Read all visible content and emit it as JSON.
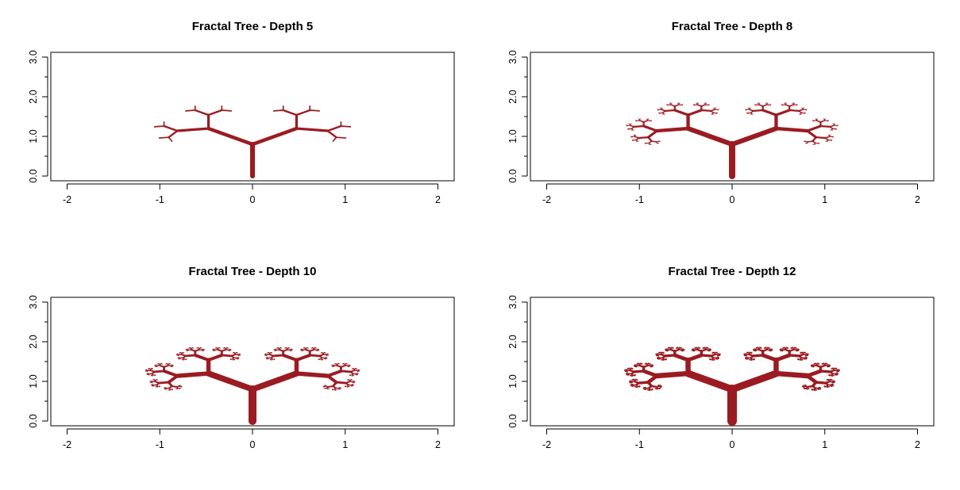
{
  "figure": {
    "background": "#ffffff",
    "branch_color": "#9b1b22"
  },
  "chart_data": [
    {
      "type": "line",
      "title": "Fractal Tree - Depth 5",
      "depth": 5,
      "xlim": [
        -2,
        2
      ],
      "ylim": [
        0,
        3
      ],
      "xticks": [
        "-2",
        "-1",
        "0",
        "1",
        "2"
      ],
      "yticks": [
        "0.0",
        "1.0",
        "2.0",
        "3.0"
      ],
      "tree": {
        "trunk": 0.8,
        "angle_deg": 50,
        "scale": 0.55,
        "base_width": 6
      },
      "grid": false
    },
    {
      "type": "line",
      "title": "Fractal Tree - Depth 8",
      "depth": 8,
      "xlim": [
        -2,
        2
      ],
      "ylim": [
        0,
        3
      ],
      "xticks": [
        "-2",
        "-1",
        "0",
        "1",
        "2"
      ],
      "yticks": [
        "0.0",
        "1.0",
        "2.0",
        "3.0"
      ],
      "tree": {
        "trunk": 0.8,
        "angle_deg": 50,
        "scale": 0.55,
        "base_width": 8
      },
      "grid": false
    },
    {
      "type": "line",
      "title": "Fractal Tree - Depth 10",
      "depth": 10,
      "xlim": [
        -2,
        2
      ],
      "ylim": [
        0,
        3
      ],
      "xticks": [
        "-2",
        "-1",
        "0",
        "1",
        "2"
      ],
      "yticks": [
        "0.0",
        "1.0",
        "2.0",
        "3.0"
      ],
      "tree": {
        "trunk": 0.8,
        "angle_deg": 50,
        "scale": 0.55,
        "base_width": 10
      },
      "grid": false
    },
    {
      "type": "line",
      "title": "Fractal Tree - Depth 12",
      "depth": 12,
      "xlim": [
        -2,
        2
      ],
      "ylim": [
        0,
        3
      ],
      "xticks": [
        "-2",
        "-1",
        "0",
        "1",
        "2"
      ],
      "yticks": [
        "0.0",
        "1.0",
        "2.0",
        "3.0"
      ],
      "tree": {
        "trunk": 0.8,
        "angle_deg": 50,
        "scale": 0.55,
        "base_width": 12
      },
      "grid": false
    }
  ]
}
